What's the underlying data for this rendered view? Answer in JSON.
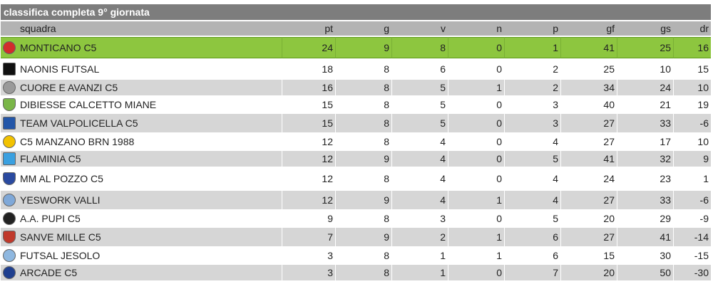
{
  "title": "classifica completa 9° giornata",
  "columns": {
    "team": "squadra",
    "pt": "pt",
    "g": "g",
    "v": "v",
    "n": "n",
    "p": "p",
    "gf": "gf",
    "gs": "gs",
    "dr": "dr"
  },
  "rows": [
    {
      "team": "MONTICANO C5",
      "pt": "24",
      "g": "9",
      "v": "8",
      "n": "0",
      "p": "1",
      "gf": "41",
      "gs": "25",
      "dr": "16",
      "icon": "monticano-logo-icon",
      "color": "#d22c2c"
    },
    {
      "team": "NAONIS FUTSAL",
      "pt": "18",
      "g": "8",
      "v": "6",
      "n": "0",
      "p": "2",
      "gf": "25",
      "gs": "10",
      "dr": "15",
      "icon": "naonis-logo-icon",
      "color": "#111111"
    },
    {
      "team": "CUORE E AVANZI C5",
      "pt": "16",
      "g": "8",
      "v": "5",
      "n": "1",
      "p": "2",
      "gf": "34",
      "gs": "24",
      "dr": "10",
      "icon": "cuore-avanzi-logo-icon",
      "color": "#9a9a9a"
    },
    {
      "team": "DIBIESSE CALCETTO MIANE",
      "pt": "15",
      "g": "8",
      "v": "5",
      "n": "0",
      "p": "3",
      "gf": "40",
      "gs": "21",
      "dr": "19",
      "icon": "dibiesse-logo-icon",
      "color": "#7ab648"
    },
    {
      "team": "TEAM VALPOLICELLA C5",
      "pt": "15",
      "g": "8",
      "v": "5",
      "n": "0",
      "p": "3",
      "gf": "27",
      "gs": "33",
      "dr": "-6",
      "icon": "valpolicella-logo-icon",
      "color": "#2356a8"
    },
    {
      "team": "C5 MANZANO BRN 1988",
      "pt": "12",
      "g": "8",
      "v": "4",
      "n": "0",
      "p": "4",
      "gf": "27",
      "gs": "17",
      "dr": "10",
      "icon": "manzano-logo-icon",
      "color": "#f2c200"
    },
    {
      "team": "FLAMINIA C5",
      "pt": "12",
      "g": "9",
      "v": "4",
      "n": "0",
      "p": "5",
      "gf": "41",
      "gs": "32",
      "dr": "9",
      "icon": "flaminia-logo-icon",
      "color": "#3aa0e0"
    },
    {
      "team": "MM AL POZZO C5",
      "pt": "12",
      "g": "8",
      "v": "4",
      "n": "0",
      "p": "4",
      "gf": "24",
      "gs": "23",
      "dr": "1",
      "icon": "mm-al-pozzo-logo-icon",
      "color": "#2a4aa0"
    },
    {
      "team": "YESWORK VALLI",
      "pt": "12",
      "g": "9",
      "v": "4",
      "n": "1",
      "p": "4",
      "gf": "27",
      "gs": "33",
      "dr": "-6",
      "icon": "yeswork-logo-icon",
      "color": "#7fa8d8"
    },
    {
      "team": "A.A. PUPI C5",
      "pt": "9",
      "g": "8",
      "v": "3",
      "n": "0",
      "p": "5",
      "gf": "20",
      "gs": "29",
      "dr": "-9",
      "icon": "pupi-logo-icon",
      "color": "#222222"
    },
    {
      "team": "SANVE MILLE C5",
      "pt": "7",
      "g": "9",
      "v": "2",
      "n": "1",
      "p": "6",
      "gf": "27",
      "gs": "41",
      "dr": "-14",
      "icon": "sanve-mille-logo-icon",
      "color": "#c0392b"
    },
    {
      "team": "FUTSAL JESOLO",
      "pt": "3",
      "g": "8",
      "v": "1",
      "n": "1",
      "p": "6",
      "gf": "15",
      "gs": "30",
      "dr": "-15",
      "icon": "jesolo-logo-icon",
      "color": "#8fb8e0"
    },
    {
      "team": "ARCADE C5",
      "pt": "3",
      "g": "8",
      "v": "1",
      "n": "0",
      "p": "7",
      "gf": "20",
      "gs": "50",
      "dr": "-30",
      "icon": "arcade-logo-icon",
      "color": "#1f3f8f"
    }
  ]
}
